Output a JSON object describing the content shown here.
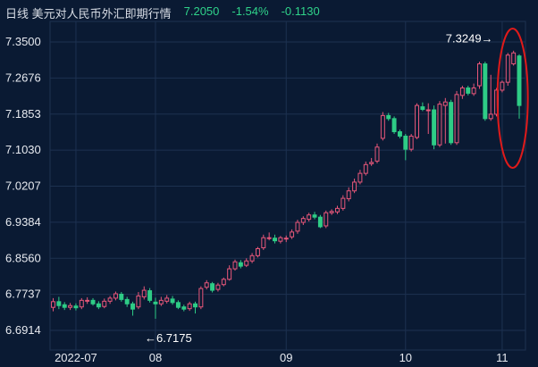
{
  "header": {
    "title": "日线  美元对人民币外汇即期行情",
    "price": "7.2050",
    "change_pct": "-1.54%",
    "change": "-0.1130"
  },
  "colors": {
    "background": "#0a1a33",
    "grid": "#1d3150",
    "up": "#e8577a",
    "down": "#2ecc86",
    "highlight_ellipse": "#e01a1a",
    "tick_text": "#e6e9ef"
  },
  "chart_data": {
    "type": "candlestick",
    "title": "",
    "xlabel": "",
    "ylabel": "",
    "ylim": [
      6.67,
      7.38
    ],
    "y_ticks": [
      "7.3500",
      "7.2676",
      "7.1853",
      "7.1030",
      "7.0207",
      "6.9384",
      "6.8560",
      "6.7737",
      "6.6914"
    ],
    "x_ticks": [
      {
        "label": "2022-07",
        "index": 4
      },
      {
        "label": "08",
        "index": 18
      },
      {
        "label": "09",
        "index": 41
      },
      {
        "label": "10",
        "index": 62
      },
      {
        "label": "11",
        "index": 79
      }
    ],
    "annotations": [
      {
        "text": "←6.7175",
        "at_index": 18,
        "value": 6.7175
      },
      {
        "text": "7.3249→",
        "at_index": 78,
        "value": 7.3249
      }
    ],
    "highlight": {
      "shape": "ellipse",
      "from_index": 80,
      "to_index": 82
    },
    "candles": [
      [
        6.744,
        6.757,
        6.765,
        6.735
      ],
      [
        6.757,
        6.748,
        6.768,
        6.74
      ],
      [
        6.75,
        6.744,
        6.756,
        6.738
      ],
      [
        6.744,
        6.748,
        6.754,
        6.738
      ],
      [
        6.747,
        6.743,
        6.753,
        6.737
      ],
      [
        6.745,
        6.76,
        6.765,
        6.74
      ],
      [
        6.758,
        6.76,
        6.767,
        6.752
      ],
      [
        6.76,
        6.752,
        6.765,
        6.748
      ],
      [
        6.752,
        6.745,
        6.758,
        6.74
      ],
      [
        6.746,
        6.758,
        6.764,
        6.742
      ],
      [
        6.758,
        6.765,
        6.77,
        6.752
      ],
      [
        6.765,
        6.775,
        6.78,
        6.76
      ],
      [
        6.774,
        6.762,
        6.779,
        6.757
      ],
      [
        6.762,
        6.752,
        6.768,
        6.745
      ],
      [
        6.752,
        6.74,
        6.757,
        6.725
      ],
      [
        6.745,
        6.77,
        6.779,
        6.74
      ],
      [
        6.768,
        6.783,
        6.792,
        6.762
      ],
      [
        6.782,
        6.76,
        6.788,
        6.755
      ],
      [
        6.756,
        6.752,
        6.766,
        6.718
      ],
      [
        6.752,
        6.76,
        6.768,
        6.747
      ],
      [
        6.758,
        6.765,
        6.772,
        6.753
      ],
      [
        6.763,
        6.755,
        6.77,
        6.75
      ],
      [
        6.755,
        6.744,
        6.76,
        6.74
      ],
      [
        6.745,
        6.74,
        6.75,
        6.735
      ],
      [
        6.741,
        6.752,
        6.757,
        6.736
      ],
      [
        6.752,
        6.745,
        6.757,
        6.73
      ],
      [
        6.745,
        6.787,
        6.792,
        6.74
      ],
      [
        6.79,
        6.8,
        6.806,
        6.785
      ],
      [
        6.798,
        6.783,
        6.802,
        6.778
      ],
      [
        6.785,
        6.795,
        6.8,
        6.78
      ],
      [
        6.796,
        6.808,
        6.812,
        6.792
      ],
      [
        6.808,
        6.832,
        6.84,
        6.805
      ],
      [
        6.832,
        6.848,
        6.853,
        6.828
      ],
      [
        6.846,
        6.838,
        6.852,
        6.833
      ],
      [
        6.84,
        6.85,
        6.856,
        6.836
      ],
      [
        6.85,
        6.862,
        6.868,
        6.845
      ],
      [
        6.862,
        6.878,
        6.882,
        6.858
      ],
      [
        6.88,
        6.903,
        6.91,
        6.875
      ],
      [
        6.902,
        6.903,
        6.915,
        6.897
      ],
      [
        6.902,
        6.896,
        6.91,
        6.89
      ],
      [
        6.895,
        6.903,
        6.907,
        6.89
      ],
      [
        6.9,
        6.902,
        6.908,
        6.893
      ],
      [
        6.905,
        6.916,
        6.922,
        6.9
      ],
      [
        6.918,
        6.938,
        6.944,
        6.912
      ],
      [
        6.938,
        6.947,
        6.952,
        6.932
      ],
      [
        6.945,
        6.955,
        6.96,
        6.94
      ],
      [
        6.955,
        6.95,
        6.962,
        6.945
      ],
      [
        6.95,
        6.928,
        6.955,
        6.925
      ],
      [
        6.93,
        6.96,
        6.965,
        6.925
      ],
      [
        6.96,
        6.963,
        6.968,
        6.955
      ],
      [
        6.962,
        6.97,
        6.976,
        6.957
      ],
      [
        6.97,
        6.993,
        7.0,
        6.965
      ],
      [
        6.992,
        7.01,
        7.018,
        6.986
      ],
      [
        7.01,
        7.03,
        7.038,
        7.005
      ],
      [
        7.03,
        7.05,
        7.058,
        7.025
      ],
      [
        7.05,
        7.07,
        7.077,
        7.045
      ],
      [
        7.072,
        7.075,
        7.085,
        7.067
      ],
      [
        7.078,
        7.11,
        7.118,
        7.073
      ],
      [
        7.13,
        7.182,
        7.19,
        7.125
      ],
      [
        7.182,
        7.175,
        7.188,
        7.17
      ],
      [
        7.175,
        7.145,
        7.18,
        7.14
      ],
      [
        7.145,
        7.135,
        7.15,
        7.13
      ],
      [
        7.135,
        7.105,
        7.14,
        7.08
      ],
      [
        7.105,
        7.135,
        7.14,
        7.1
      ],
      [
        7.132,
        7.205,
        7.21,
        7.128
      ],
      [
        7.202,
        7.196,
        7.212,
        7.192
      ],
      [
        7.195,
        7.195,
        7.21,
        7.14
      ],
      [
        7.195,
        7.115,
        7.205,
        7.105
      ],
      [
        7.115,
        7.208,
        7.215,
        7.11
      ],
      [
        7.205,
        7.213,
        7.222,
        7.118
      ],
      [
        7.212,
        7.12,
        7.218,
        7.115
      ],
      [
        7.12,
        7.23,
        7.238,
        7.115
      ],
      [
        7.228,
        7.245,
        7.25,
        7.22
      ],
      [
        7.245,
        7.233,
        7.25,
        7.228
      ],
      [
        7.232,
        7.245,
        7.255,
        7.227
      ],
      [
        7.25,
        7.3,
        7.305,
        7.243
      ],
      [
        7.3,
        7.175,
        7.305,
        7.17
      ],
      [
        7.175,
        7.185,
        7.275,
        7.17
      ],
      [
        7.185,
        7.24,
        7.245,
        7.18
      ],
      [
        7.24,
        7.258,
        7.262,
        7.235
      ],
      [
        7.258,
        7.32,
        7.325,
        7.25
      ],
      [
        7.3,
        7.325,
        7.33,
        7.296
      ],
      [
        7.318,
        7.205,
        7.322,
        7.175
      ]
    ]
  }
}
